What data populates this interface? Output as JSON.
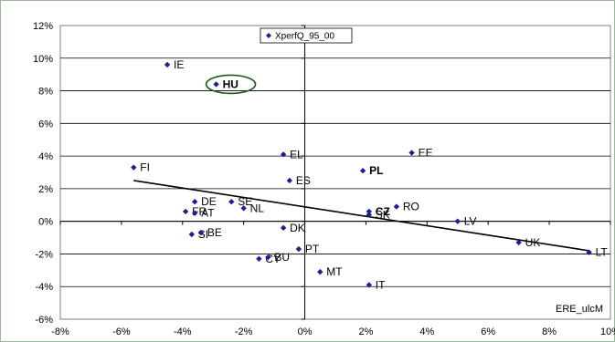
{
  "chart_data": {
    "type": "scatter",
    "title": "",
    "xlabel": "ERE_ulcM",
    "ylabel": "",
    "xlim": [
      -8,
      10
    ],
    "ylim": [
      -6,
      12
    ],
    "x_ticks": [
      "-8%",
      "-6%",
      "-4%",
      "-2%",
      "0%",
      "2%",
      "4%",
      "6%",
      "8%",
      "10%"
    ],
    "y_ticks": [
      "-6%",
      "-4%",
      "-2%",
      "0%",
      "2%",
      "4%",
      "6%",
      "8%",
      "10%",
      "12%"
    ],
    "grid": "horizontal",
    "legend": {
      "position": "top-center",
      "label": "XperfQ_95_00"
    },
    "series": [
      {
        "name": "XperfQ_95_00",
        "color": "#1f1f8f",
        "points": [
          {
            "label": "IE",
            "x": -4.5,
            "y": 9.6
          },
          {
            "label": "HU",
            "x": -2.9,
            "y": 8.4,
            "bold": true,
            "circled": true
          },
          {
            "label": "FI",
            "x": -5.6,
            "y": 3.3
          },
          {
            "label": "EL",
            "x": -0.7,
            "y": 4.1
          },
          {
            "label": "ES",
            "x": -0.5,
            "y": 2.5
          },
          {
            "label": "EE",
            "x": 3.5,
            "y": 4.2
          },
          {
            "label": "PL",
            "x": 1.9,
            "y": 3.1,
            "bold": true
          },
          {
            "label": "DE",
            "x": -3.6,
            "y": 1.2
          },
          {
            "label": "SE",
            "x": -2.4,
            "y": 1.2
          },
          {
            "label": "FR",
            "x": -3.9,
            "y": 0.6
          },
          {
            "label": "AT",
            "x": -3.6,
            "y": 0.5
          },
          {
            "label": "NL",
            "x": -2.0,
            "y": 0.8
          },
          {
            "label": "CZ",
            "x": 2.1,
            "y": 0.6,
            "bold": true
          },
          {
            "label": "SK",
            "x": 2.1,
            "y": 0.4
          },
          {
            "label": "RO",
            "x": 3.0,
            "y": 0.9
          },
          {
            "label": "LV",
            "x": 5.0,
            "y": 0.0
          },
          {
            "label": "SI",
            "x": -3.7,
            "y": -0.8
          },
          {
            "label": "BE",
            "x": -3.4,
            "y": -0.7
          },
          {
            "label": "DK",
            "x": -0.7,
            "y": -0.4
          },
          {
            "label": "UK",
            "x": 7.0,
            "y": -1.3
          },
          {
            "label": "LT",
            "x": 9.3,
            "y": -1.9
          },
          {
            "label": "PT",
            "x": -0.2,
            "y": -1.7
          },
          {
            "label": "CY",
            "x": -1.5,
            "y": -2.3
          },
          {
            "label": "BU",
            "x": -1.2,
            "y": -2.2
          },
          {
            "label": "MT",
            "x": 0.5,
            "y": -3.1
          },
          {
            "label": "IT",
            "x": 2.1,
            "y": -3.9
          }
        ]
      }
    ],
    "trendline": {
      "x1": -5.6,
      "y1": 2.5,
      "x2": 9.3,
      "y2": -1.8
    }
  }
}
